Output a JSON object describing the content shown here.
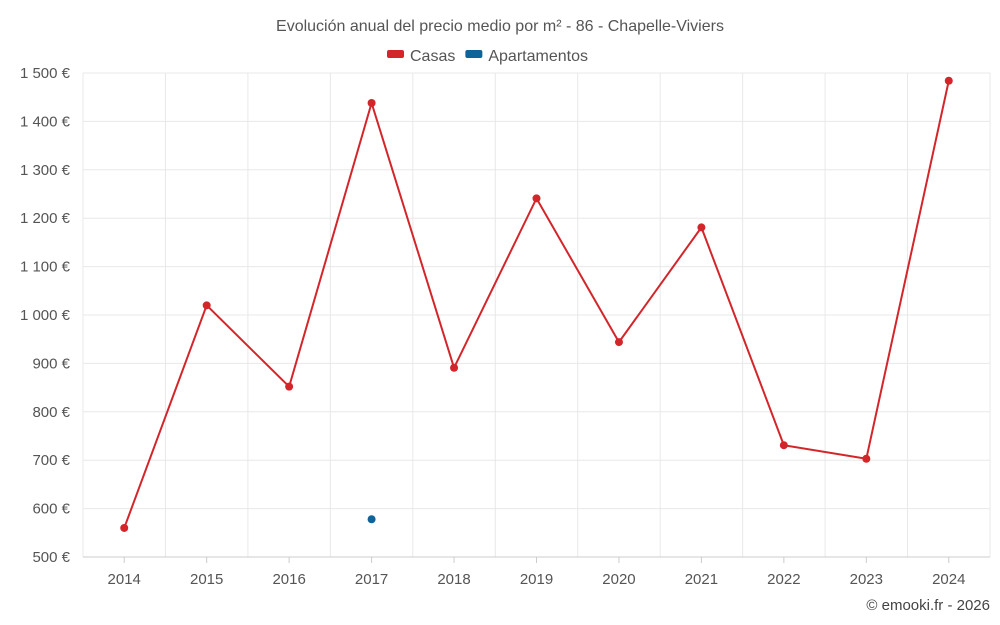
{
  "chart_data": {
    "type": "line",
    "title": "Evolución anual del precio medio por m² - 86 - Chapelle-Viviers",
    "categories": [
      "2014",
      "2015",
      "2016",
      "2017",
      "2018",
      "2019",
      "2020",
      "2021",
      "2022",
      "2023",
      "2024"
    ],
    "series": [
      {
        "name": "Casas",
        "color": "#d3262b",
        "values": [
          560,
          1020,
          852,
          1438,
          891,
          1241,
          944,
          1181,
          731,
          703,
          1484
        ]
      },
      {
        "name": "Apartamentos",
        "color": "#0e6399",
        "values": [
          null,
          null,
          null,
          578,
          null,
          null,
          null,
          null,
          null,
          null,
          null
        ]
      }
    ],
    "ylim": [
      500,
      1500
    ],
    "yticks": [
      500,
      600,
      700,
      800,
      900,
      1000,
      1100,
      1200,
      1300,
      1400,
      1500
    ],
    "ytick_labels": [
      "500 €",
      "600 €",
      "700 €",
      "800 €",
      "900 €",
      "1 000 €",
      "1 100 €",
      "1 200 €",
      "1 300 €",
      "1 400 €",
      "1 500 €"
    ],
    "xlabel": "",
    "ylabel": "",
    "grid": true,
    "legend_position": "top-center"
  },
  "credit": "© emooki.fr - 2026"
}
